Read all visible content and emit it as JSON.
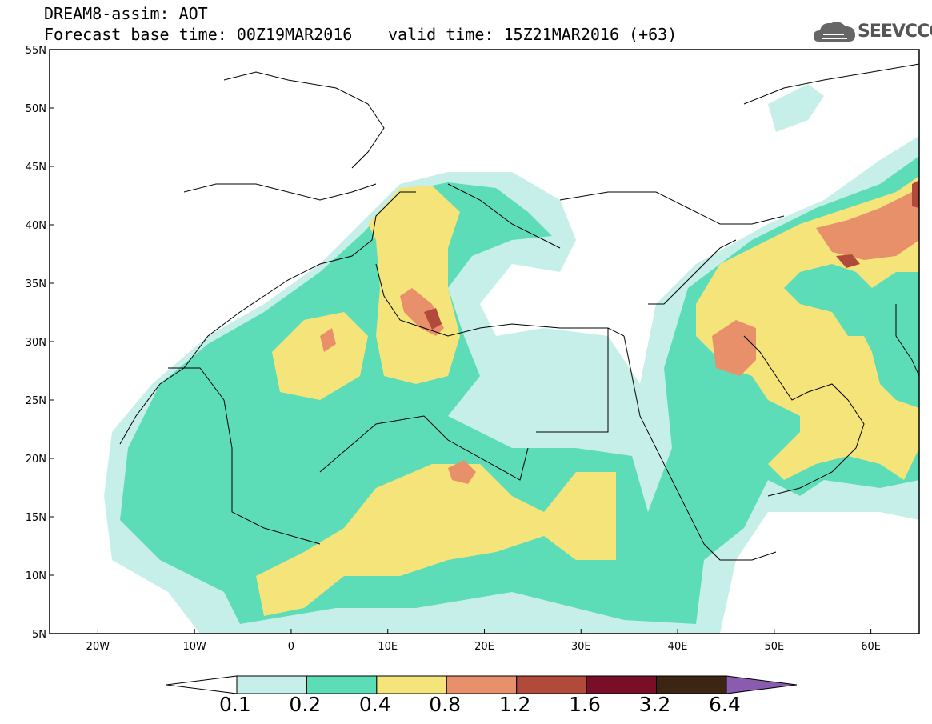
{
  "header": {
    "line1": "DREAM8-assim: AOT",
    "line2": "Forecast base time: 00Z19MAR2016",
    "valid": "valid time: 15Z21MAR2016 (+63)"
  },
  "logo": {
    "text": "SEEVCCC",
    "icon": "cloud-icon"
  },
  "map": {
    "lon_range": [
      -25,
      65
    ],
    "lat_range": [
      5,
      55
    ],
    "lat_ticks": [
      "55N",
      "50N",
      "45N",
      "40N",
      "35N",
      "30N",
      "25N",
      "20N",
      "15N",
      "10N",
      "5N"
    ],
    "lon_ticks": [
      "20W",
      "10W",
      "0",
      "10E",
      "20E",
      "30E",
      "40E",
      "50E",
      "60E"
    ],
    "coastline_color": "#000000"
  },
  "colorbar": {
    "bounds": [
      "0.1",
      "0.2",
      "0.4",
      "0.8",
      "1.2",
      "1.6",
      "3.2",
      "6.4"
    ],
    "colors": [
      "#ffffff",
      "#c6efe9",
      "#5ddcb8",
      "#f5e47a",
      "#e8906a",
      "#b24a3c",
      "#7a0e26",
      "#3d2514",
      "#8a5cb0"
    ]
  }
}
